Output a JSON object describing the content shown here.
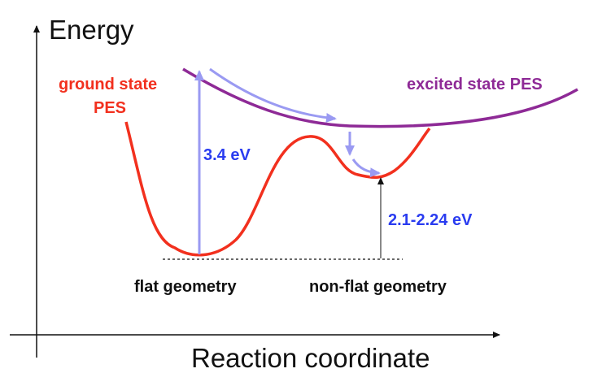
{
  "axes": {
    "y_label": "Energy",
    "x_label": "Reaction coordinate"
  },
  "curves": {
    "ground": {
      "label_line1": "ground state",
      "label_line2": "PES"
    },
    "excited": {
      "label": "excited state PES"
    }
  },
  "annotations": {
    "excitation": "3.4 eV",
    "gap": "2.1-2.24 eV"
  },
  "geometries": {
    "flat": "flat geometry",
    "nonflat": "non-flat geometry"
  }
}
